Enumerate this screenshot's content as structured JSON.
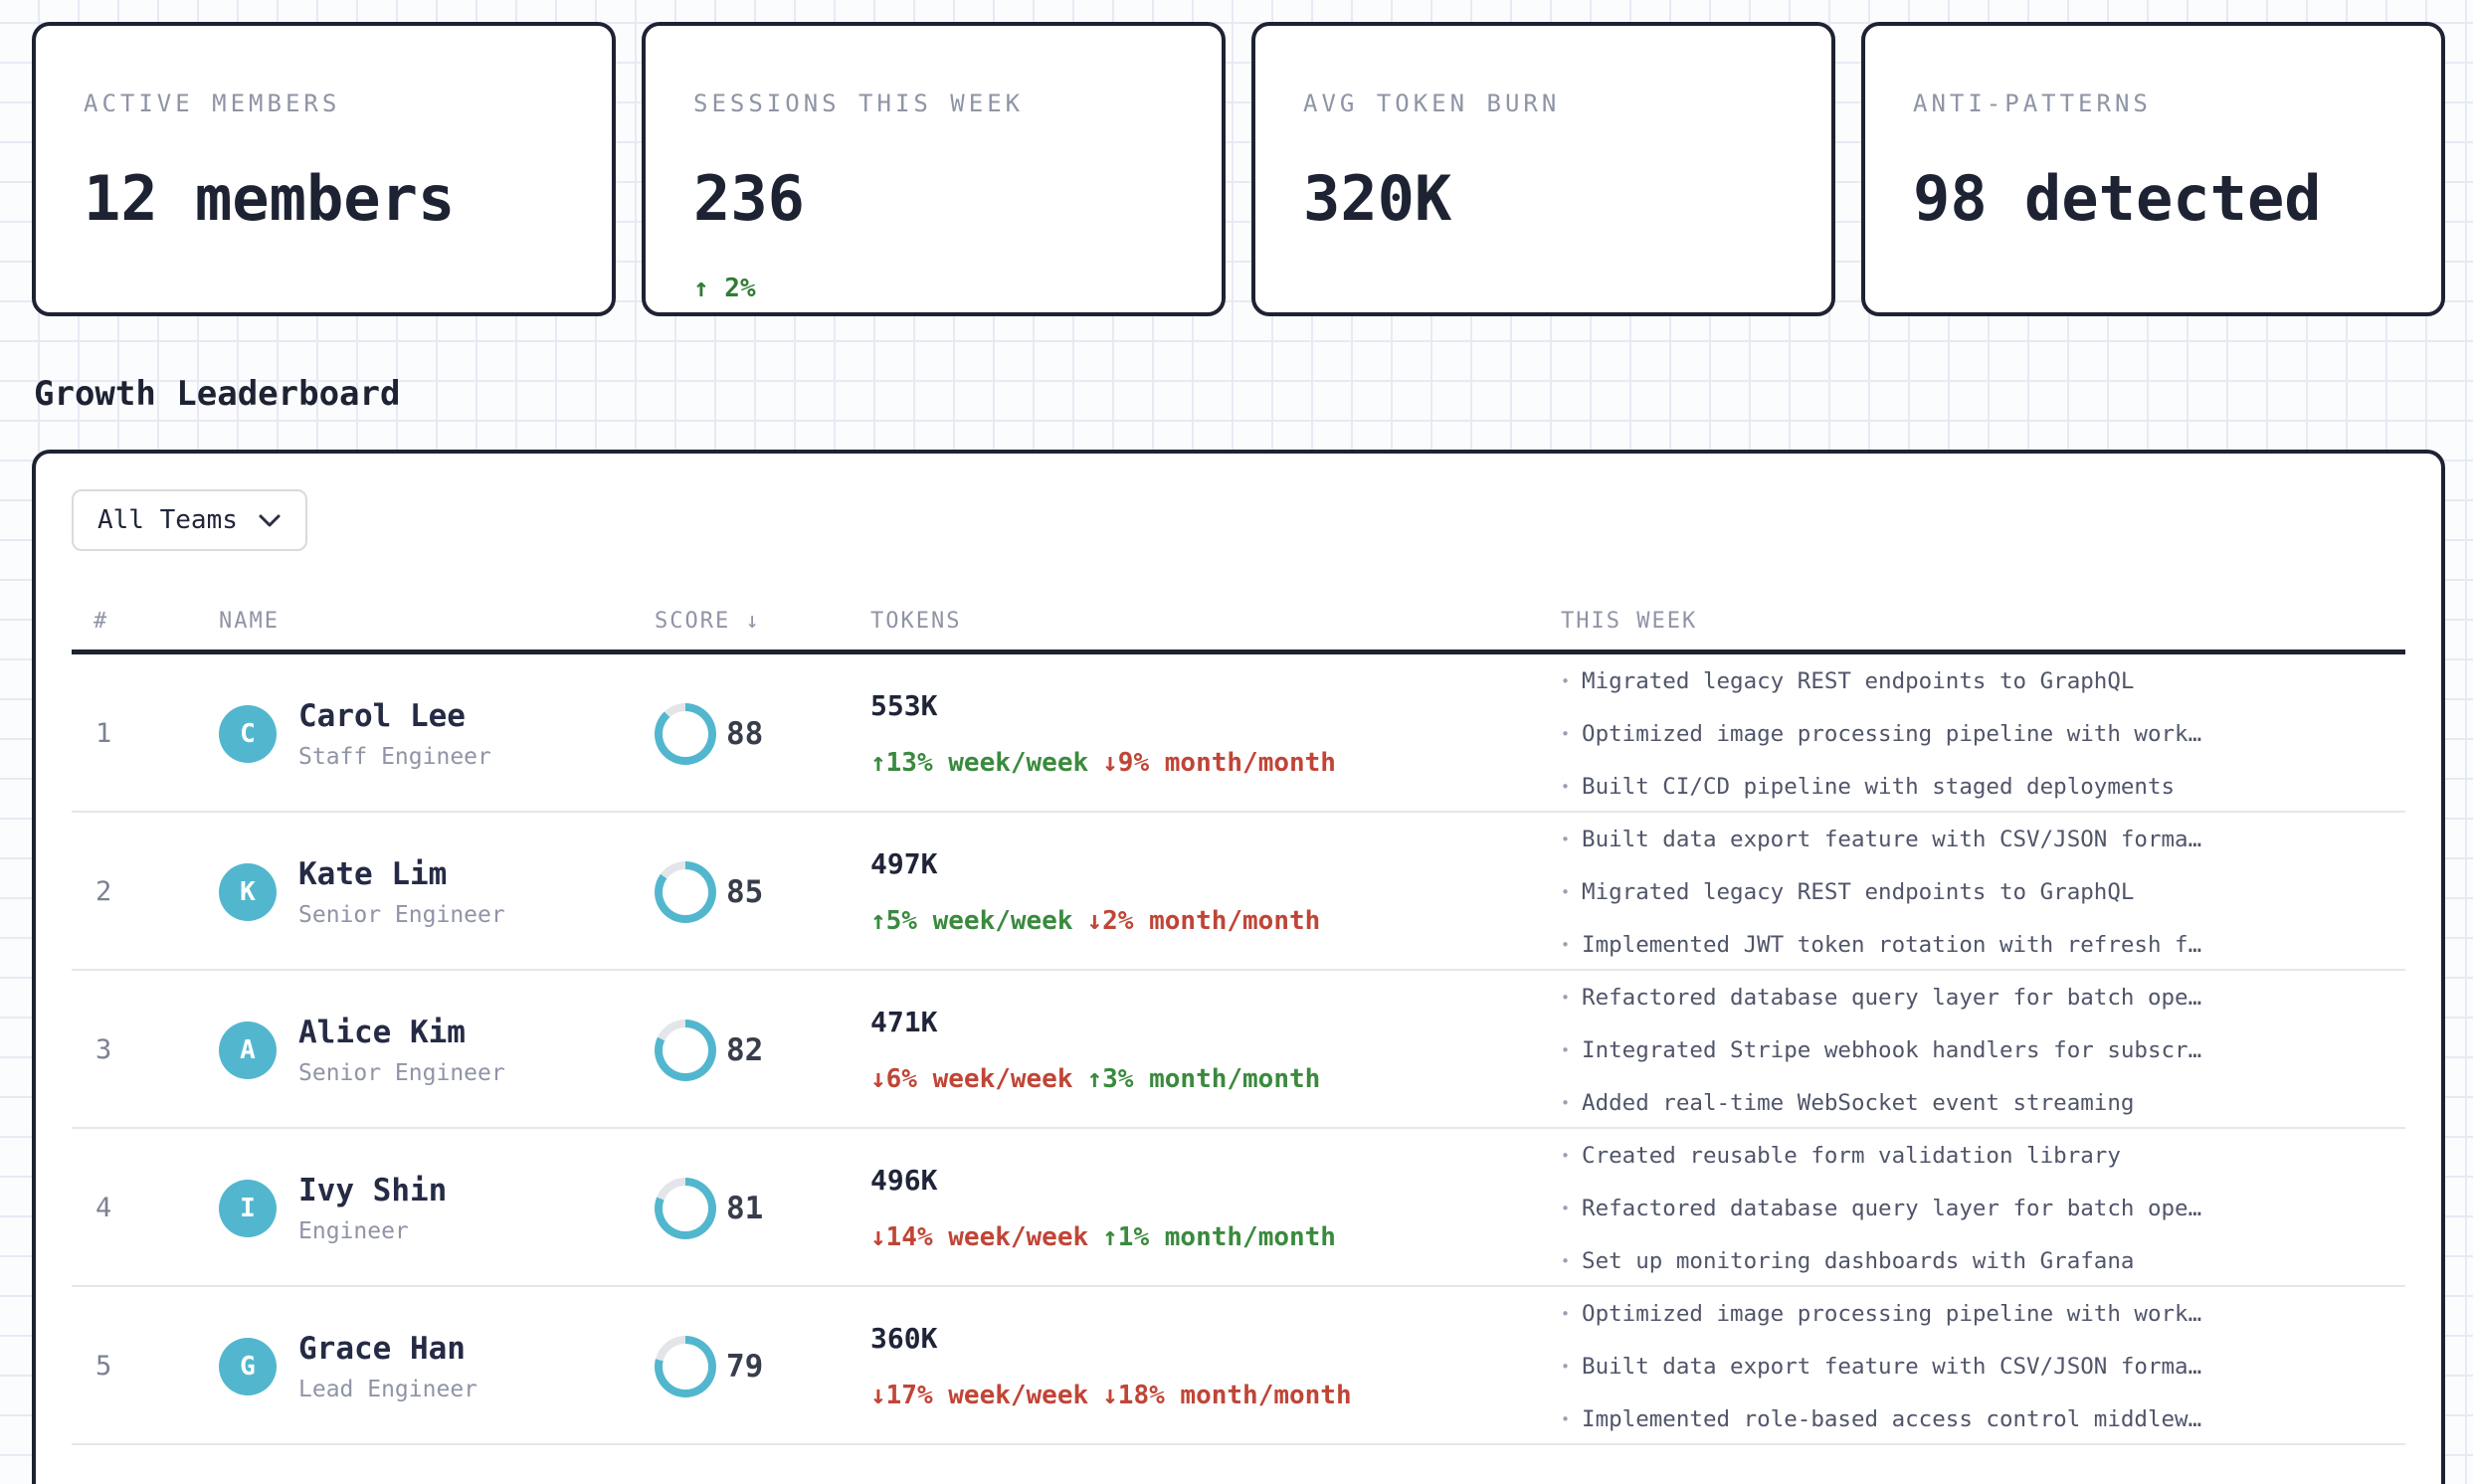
{
  "colors": {
    "ink": "#1e2333",
    "accent_teal": "#52b7ce",
    "positive_green": "#3a8a3e",
    "negative_red": "#c04537",
    "ring_track": "#e4e5e9"
  },
  "stats": [
    {
      "label": "ACTIVE MEMBERS",
      "value": "12 members",
      "delta": ""
    },
    {
      "label": "SESSIONS THIS WEEK",
      "value": "236",
      "delta": "↑ 2%"
    },
    {
      "label": "AVG TOKEN BURN",
      "value": "320K",
      "delta": ""
    },
    {
      "label": "ANTI-PATTERNS",
      "value": "98 detected",
      "delta": ""
    }
  ],
  "section_title": "Growth Leaderboard",
  "filter": {
    "value": "All Teams"
  },
  "table": {
    "headers": {
      "rank": "#",
      "name": "NAME",
      "score": "SCORE ↓",
      "tokens": "TOKENS",
      "week": "THIS WEEK"
    },
    "rows": [
      {
        "rank": "1",
        "initial": "C",
        "name": "Carol Lee",
        "role": "Staff Engineer",
        "score": 88,
        "tokens": "553K",
        "week_trend": "↑13% week/week",
        "week_dir": "up",
        "month_trend": "↓9% month/month",
        "month_dir": "down",
        "highlights": [
          "Migrated legacy REST endpoints to GraphQL",
          "Optimized image processing pipeline with work…",
          "Built CI/CD pipeline with staged deployments"
        ]
      },
      {
        "rank": "2",
        "initial": "K",
        "name": "Kate Lim",
        "role": "Senior Engineer",
        "score": 85,
        "tokens": "497K",
        "week_trend": "↑5% week/week",
        "week_dir": "up",
        "month_trend": "↓2% month/month",
        "month_dir": "down",
        "highlights": [
          "Built data export feature with CSV/JSON forma…",
          "Migrated legacy REST endpoints to GraphQL",
          "Implemented JWT token rotation with refresh f…"
        ]
      },
      {
        "rank": "3",
        "initial": "A",
        "name": "Alice Kim",
        "role": "Senior Engineer",
        "score": 82,
        "tokens": "471K",
        "week_trend": "↓6% week/week",
        "week_dir": "down",
        "month_trend": "↑3% month/month",
        "month_dir": "up",
        "highlights": [
          "Refactored database query layer for batch ope…",
          "Integrated Stripe webhook handlers for subscr…",
          "Added real-time WebSocket event streaming"
        ]
      },
      {
        "rank": "4",
        "initial": "I",
        "name": "Ivy Shin",
        "role": "Engineer",
        "score": 81,
        "tokens": "496K",
        "week_trend": "↓14% week/week",
        "week_dir": "down",
        "month_trend": "↑1% month/month",
        "month_dir": "up",
        "highlights": [
          "Created reusable form validation library",
          "Refactored database query layer for batch ope…",
          "Set up monitoring dashboards with Grafana"
        ]
      },
      {
        "rank": "5",
        "initial": "G",
        "name": "Grace Han",
        "role": "Lead Engineer",
        "score": 79,
        "tokens": "360K",
        "week_trend": "↓17% week/week",
        "week_dir": "down",
        "month_trend": "↓18% month/month",
        "month_dir": "down",
        "highlights": [
          "Optimized image processing pipeline with work…",
          "Built data export feature with CSV/JSON forma…",
          "Implemented role-based access control middlew…"
        ]
      }
    ]
  }
}
